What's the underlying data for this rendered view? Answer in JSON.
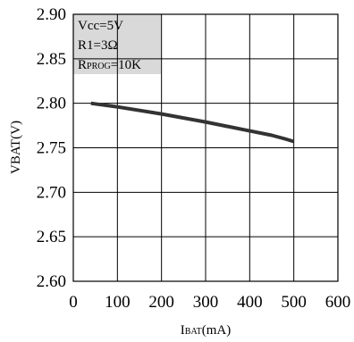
{
  "chart_data": {
    "type": "line",
    "xlabel": {
      "main": "I",
      "sub": "BAT",
      "suffix": "(mA)"
    },
    "ylabel": "VBAT(V)",
    "xlim": [
      0,
      600
    ],
    "ylim": [
      2.6,
      2.9
    ],
    "x_ticks": [
      "0",
      "100",
      "200",
      "300",
      "400",
      "500",
      "600"
    ],
    "y_ticks": [
      "2.60",
      "2.65",
      "2.70",
      "2.75",
      "2.80",
      "2.85",
      "2.90"
    ],
    "grid": true,
    "legend": {
      "placement": "top-left",
      "background": "#d9d9d9",
      "line1": "Vcc=5V",
      "line2": "R1=3Ω",
      "line3_main": "R",
      "line3_sub": "PROG",
      "line3_suffix": "=10K"
    },
    "series": [
      {
        "color": "#333333",
        "x": [
          40,
          100,
          200,
          300,
          400,
          450,
          480,
          500
        ],
        "y": [
          2.8,
          2.796,
          2.788,
          2.779,
          2.769,
          2.764,
          2.76,
          2.757
        ]
      }
    ]
  }
}
